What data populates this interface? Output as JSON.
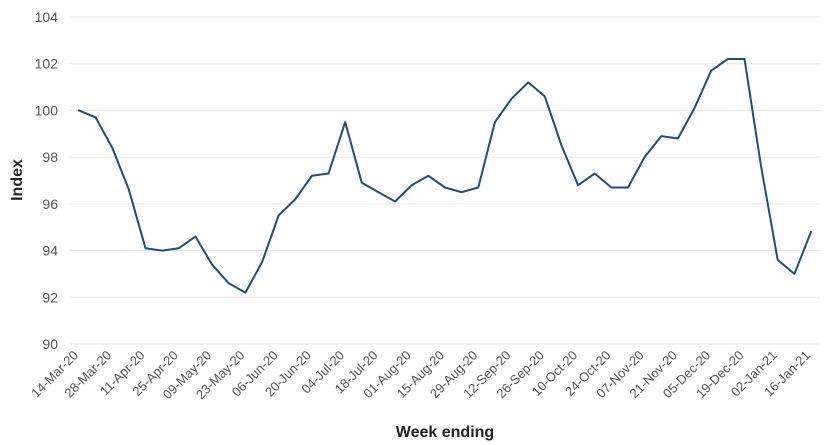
{
  "chart_data": {
    "type": "line",
    "title": "",
    "xlabel": "Week ending",
    "ylabel": "Index",
    "ylim": [
      90,
      104
    ],
    "yticks": [
      "90",
      "92",
      "94",
      "96",
      "98",
      "100",
      "102",
      "104"
    ],
    "grid": true,
    "line_color": "#1f4e79",
    "x_tick_labels": [
      "14-Mar-20",
      "28-Mar-20",
      "11-Apr-20",
      "25-Apr-20",
      "09-May-20",
      "23-May-20",
      "06-Jun-20",
      "20-Jun-20",
      "04-Jul-20",
      "18-Jul-20",
      "01-Aug-20",
      "15-Aug-20",
      "29-Aug-20",
      "12-Sep-20",
      "26-Sep-20",
      "10-Oct-20",
      "24-Oct-20",
      "07-Nov-20",
      "21-Nov-20",
      "05-Dec-20",
      "19-Dec-20",
      "02-Jan-21",
      "16-Jan-21"
    ],
    "x": [
      "14-Mar-20",
      "21-Mar-20",
      "28-Mar-20",
      "04-Apr-20",
      "11-Apr-20",
      "18-Apr-20",
      "25-Apr-20",
      "02-May-20",
      "09-May-20",
      "16-May-20",
      "23-May-20",
      "30-May-20",
      "06-Jun-20",
      "13-Jun-20",
      "20-Jun-20",
      "27-Jun-20",
      "04-Jul-20",
      "11-Jul-20",
      "18-Jul-20",
      "25-Jul-20",
      "01-Aug-20",
      "08-Aug-20",
      "15-Aug-20",
      "22-Aug-20",
      "29-Aug-20",
      "05-Sep-20",
      "12-Sep-20",
      "19-Sep-20",
      "26-Sep-20",
      "03-Oct-20",
      "10-Oct-20",
      "17-Oct-20",
      "24-Oct-20",
      "31-Oct-20",
      "07-Nov-20",
      "14-Nov-20",
      "21-Nov-20",
      "28-Nov-20",
      "05-Dec-20",
      "12-Dec-20",
      "19-Dec-20",
      "26-Dec-20",
      "02-Jan-21",
      "09-Jan-21",
      "16-Jan-21"
    ],
    "series": [
      {
        "values": [
          100.0,
          99.7,
          98.4,
          96.6,
          94.1,
          94.0,
          94.1,
          94.6,
          93.4,
          92.6,
          92.2,
          93.5,
          95.5,
          96.2,
          97.2,
          97.3,
          99.5,
          96.9,
          96.5,
          96.1,
          96.8,
          97.2,
          96.7,
          96.5,
          96.7,
          99.5,
          100.5,
          101.2,
          100.6,
          98.5,
          96.8,
          97.3,
          96.7,
          96.7,
          98.0,
          98.9,
          98.8,
          100.1,
          101.7,
          102.2,
          102.2,
          97.6,
          93.6,
          93.0,
          94.8
        ]
      }
    ]
  }
}
